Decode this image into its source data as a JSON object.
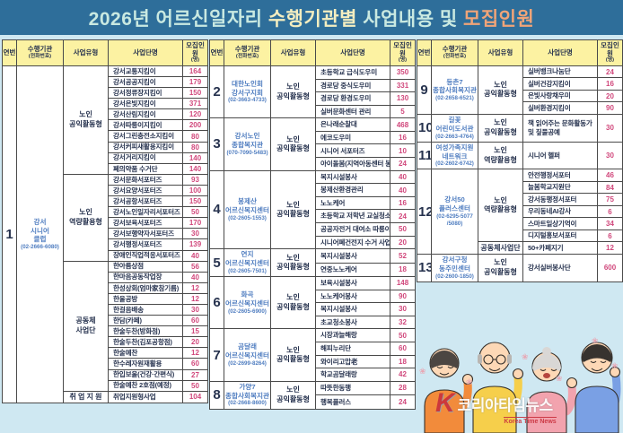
{
  "title": {
    "part1": "2026년 어르신일자리 ",
    "part2": "수행기관별 ",
    "part3": "사업내용 및 ",
    "part4": "모집인원"
  },
  "colors": {
    "page_bg": "#cfe8f2",
    "title_bg": "#2e6e9a",
    "title_text": "#c9e9e1",
    "title_highlight": "#f4eec0",
    "title_accent": "#f0a478",
    "header_bg": "#fcf2a2",
    "count": "#d1487c",
    "institution": "#4f7dc0",
    "ink": "#26324e",
    "border": "#4a4a4a"
  },
  "table_headers": {
    "num": "연번",
    "institution": "수행기관",
    "institution_sub": "(전화번호)",
    "type": "사업유형",
    "name": "사업단명",
    "count": "모집인원",
    "count_sub": "(명)"
  },
  "panels": [
    {
      "institutions": [
        {
          "num": "1",
          "name_lines": [
            "강서",
            "시니어",
            "클럽"
          ],
          "phone": "(02-2666-6080)",
          "groups": [
            {
              "type_lines": [
                "노인",
                "공익활동형"
              ],
              "rows": [
                [
                  "강서교통지킴이",
                  "164"
                ],
                [
                  "강서공공지킴이",
                  "179"
                ],
                [
                  "강서정류장지킴이",
                  "150"
                ],
                [
                  "강서은빛지킴이",
                  "371"
                ],
                [
                  "강서산림지킴이",
                  "120"
                ],
                [
                  "강서따릉이지킴이",
                  "200"
                ],
                [
                  "강서그린충전소지킴이",
                  "80"
                ],
                [
                  "강서커피새활용지킴이",
                  "80"
                ],
                [
                  "강서거리지킴이",
                  "140"
                ],
                [
                  "폐의약품 수거단",
                  "140"
                ]
              ]
            },
            {
              "type_lines": [
                "노인",
                "역량활용형"
              ],
              "rows": [
                [
                  "강서문화서포터즈",
                  "93"
                ],
                [
                  "강서요양서포터즈",
                  "100"
                ],
                [
                  "강서공항서포터즈",
                  "150"
                ],
                [
                  "강서노인일자리서포터즈",
                  "50"
                ],
                [
                  "강서보육서포터즈",
                  "170"
                ],
                [
                  "강서보행약자서포터즈",
                  "30"
                ],
                [
                  "강서행정서포터즈",
                  "139"
                ],
                [
                  "장애인직업적응서포터즈",
                  "40"
                ]
              ]
            },
            {
              "type_lines": [
                "공동체",
                "사업단"
              ],
              "rows": [
                [
                  "한아름상점",
                  "56"
                ],
                [
                  "한마음공동작업장",
                  "40"
                ],
                [
                  "한성상회(엄마家참기름)",
                  "12"
                ],
                [
                  "한울공방",
                  "12"
                ],
                [
                  "한걸음배송",
                  "30"
                ],
                [
                  "한담(카페)",
                  "60"
                ],
                [
                  "한술두찬(방화점)",
                  "15"
                ],
                [
                  "한술두찬(김포공항점)",
                  "20"
                ],
                [
                  "한술예찬",
                  "12"
                ],
                [
                  "한수레자원재활용",
                  "60"
                ],
                [
                  "한입보울(건강·간편식)",
                  "27"
                ],
                [
                  "한술예찬 2호점(예정)",
                  "50"
                ]
              ]
            },
            {
              "type_lines": [
                "취 업 지 원"
              ],
              "rows": [
                [
                  "취업지원형사업",
                  "104"
                ]
              ]
            }
          ]
        }
      ]
    },
    {
      "institutions": [
        {
          "num": "2",
          "name_lines": [
            "대한노인회",
            "강서구지회"
          ],
          "phone": "(02-3663-4733)",
          "groups": [
            {
              "type_lines": [
                "노인",
                "공익활동형"
              ],
              "rows": [
                [
                  "초등학교 급식도우미",
                  "350"
                ],
                [
                  "경로당 중식도우미",
                  "331"
                ],
                [
                  "경로당 환경도우미",
                  "130"
                ],
                [
                  "실버문화센터 관리",
                  "5"
                ]
              ]
            }
          ]
        },
        {
          "num": "3",
          "name_lines": [
            "강서노인",
            "종합복지관"
          ],
          "phone": "(070-7090-5483)",
          "groups": [
            {
              "type_lines": [
                "노인",
                "공익활동형"
              ],
              "rows": [
                [
                  "은나래순찰대",
                  "468"
                ],
                [
                  "에코도우미",
                  "16"
                ],
                [
                  "시니어 서포터즈",
                  "10"
                ],
                [
                  "아이돌봄(지역아동센터 봉사)",
                  "24"
                ]
              ]
            }
          ]
        },
        {
          "num": "4",
          "name_lines": [
            "봉제산",
            "어르신복지센터"
          ],
          "phone": "(02-2605-1553)",
          "groups": [
            {
              "type_lines": [
                "노인",
                "공익활동형"
              ],
              "rows": [
                [
                  "복지시설봉사",
                  "40"
                ],
                [
                  "봉제산환경관리",
                  "40"
                ],
                [
                  "노노케어",
                  "16"
                ],
                [
                  "초등학교 저학년 교실청소",
                  "24"
                ],
                [
                  "공공자전거 대여소 따릉이사업",
                  "50"
                ],
                [
                  "시니어폐건전지 수거 사업",
                  "20"
                ]
              ]
            }
          ]
        },
        {
          "num": "5",
          "name_lines": [
            "연지",
            "어르신복지센터"
          ],
          "phone": "(02-2605-7501)",
          "groups": [
            {
              "type_lines": [
                "노인",
                "공익활동형"
              ],
              "rows": [
                [
                  "복지시설봉사",
                  "52"
                ],
                [
                  "연중노노케어",
                  "18"
                ]
              ]
            }
          ]
        },
        {
          "num": "6",
          "name_lines": [
            "화곡",
            "어르신복지센터"
          ],
          "phone": "(02-2605-6900)",
          "groups": [
            {
              "type_lines": [
                "노인",
                "공익활동형"
              ],
              "rows": [
                [
                  "보육시설봉사",
                  "148"
                ],
                [
                  "노노케어봉사",
                  "90"
                ],
                [
                  "복지시설봉사",
                  "30"
                ],
                [
                  "초교청소봉사",
                  "32"
                ]
              ]
            }
          ]
        },
        {
          "num": "7",
          "name_lines": [
            "곰달래",
            "어르신복지센터"
          ],
          "phone": "(02-2699-8264)",
          "groups": [
            {
              "type_lines": [
                "노인",
                "공익활동형"
              ],
              "rows": [
                [
                  "시장과늘해랑",
                  "50"
                ],
                [
                  "해피누리단",
                  "60"
                ],
                [
                  "와이리고맙老",
                  "18"
                ],
                [
                  "학교곰달래랑",
                  "42"
                ]
              ]
            }
          ]
        },
        {
          "num": "8",
          "name_lines": [
            "가양7",
            "종합사회복지관"
          ],
          "phone": "(02-2668-8600)",
          "groups": [
            {
              "type_lines": [
                "노인",
                "공익활동형"
              ],
              "rows": [
                [
                  "따뜻한동행",
                  "28"
                ],
                [
                  "행복플러스",
                  "24"
                ]
              ]
            }
          ]
        }
      ]
    },
    {
      "institutions": [
        {
          "num": "9",
          "name_lines": [
            "등촌7",
            "종합사회복지관"
          ],
          "phone": "(02-2658-6521)",
          "groups": [
            {
              "type_lines": [
                "노인",
                "공익활동형"
              ],
              "rows": [
                [
                  "실버뱅크나눔단",
                  "24"
                ],
                [
                  "실버건강지킴이",
                  "16"
                ],
                [
                  "은빛사랑채우미",
                  "20"
                ],
                [
                  "실버환경지킴이",
                  "90"
                ]
              ]
            }
          ]
        },
        {
          "num": "10",
          "name_lines": [
            "길꽃",
            "어린이도서관"
          ],
          "phone": "(02-2663-4764)",
          "groups": [
            {
              "type_lines": [
                "노인",
                "공익활동형"
              ],
              "rows": [
                [
                  "책 읽어주는 문화활동가\n및 짚풀공예",
                  "30"
                ]
              ]
            }
          ]
        },
        {
          "num": "11",
          "name_lines": [
            "여성가족지원",
            "네트워크"
          ],
          "phone": "(02-2602-6742)",
          "groups": [
            {
              "type_lines": [
                "노인",
                "역량활용형"
              ],
              "rows": [
                [
                  "시니어 헬퍼",
                  "30"
                ]
              ]
            }
          ]
        },
        {
          "num": "12",
          "name_lines": [
            "강서50",
            "플러스센터"
          ],
          "phone": "(02-6295-5077\n/5080)",
          "groups": [
            {
              "type_lines": [
                "노인",
                "역량활용형"
              ],
              "rows": [
                [
                  "안전행정서포터",
                  "46"
                ],
                [
                  "늘봄학교지원단",
                  "84"
                ],
                [
                  "강서동행정서포터",
                  "75"
                ],
                [
                  "우리동네AI강사",
                  "6"
                ],
                [
                  "스마트일상기억이",
                  "34"
                ],
                [
                  "디지털홍보서포터",
                  "6"
                ]
              ]
            },
            {
              "type_lines": [
                "공동체사업단"
              ],
              "rows": [
                [
                  "50+카페지기",
                  "12"
                ]
              ]
            }
          ]
        },
        {
          "num": "13",
          "name_lines": [
            "강서구청",
            "동주민센터"
          ],
          "phone": "(02-2600-1850)",
          "groups": [
            {
              "type_lines": [
                "노인",
                "공익활동형"
              ],
              "rows": [
                [
                  "강서실버봉사단",
                  "600"
                ]
              ]
            }
          ]
        }
      ]
    }
  ],
  "watermark": {
    "logo": "K",
    "name": "코리아타임뉴스",
    "sub": "Korea Time News"
  },
  "decor": {
    "flower": "❀"
  }
}
